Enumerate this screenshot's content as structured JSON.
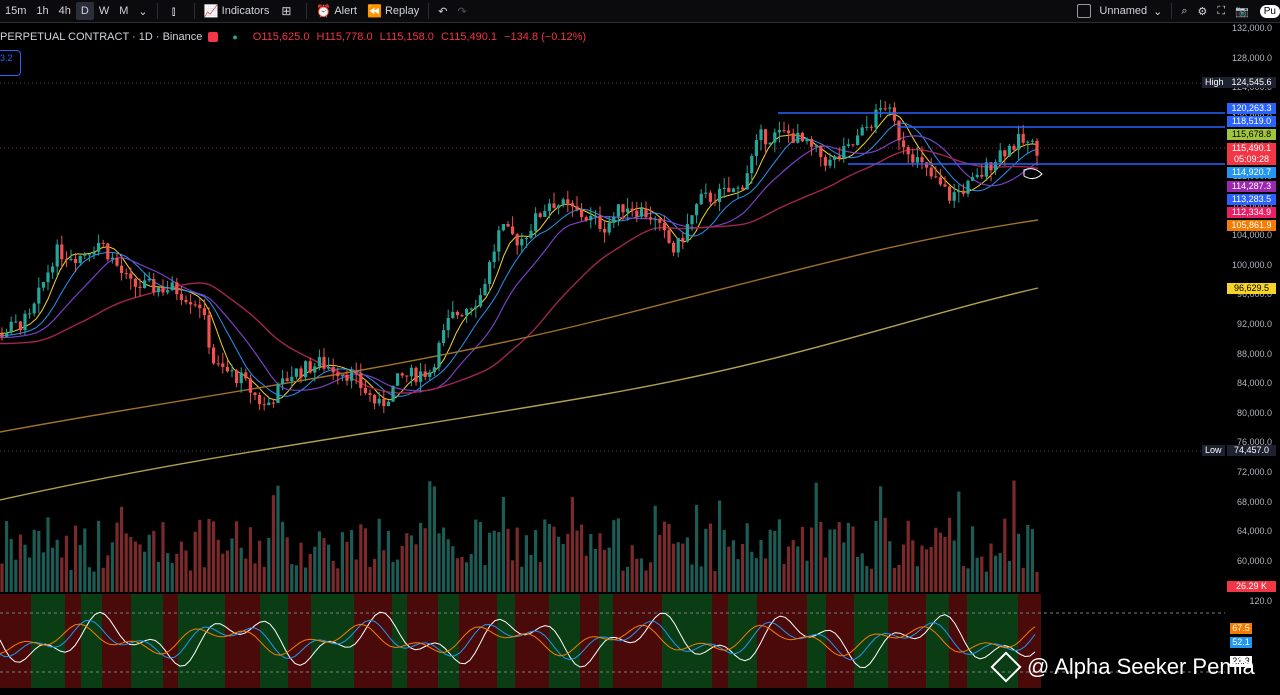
{
  "toolbar": {
    "timeframes": [
      "15m",
      "1h",
      "4h",
      "D",
      "W",
      "M"
    ],
    "active_timeframe": "D",
    "indicators_label": "Indicators",
    "alert_label": "Alert",
    "replay_label": "Replay",
    "layout_name": "Unnamed",
    "publish_label": "Pu"
  },
  "legend": {
    "symbol": "PERPETUAL CONTRACT · 1D · Binance",
    "open": "O115,625.0",
    "high": "H115,778.0",
    "low": "L115,158.0",
    "close": "C115,490.1",
    "change": "−134.8 (−0.12%)",
    "badge": "3.2"
  },
  "price_axis": [
    "132,000.0",
    "128,000.0",
    "124,000.0",
    "120,000.0",
    "116,000.0",
    "112,000.0",
    "108,000.0",
    "104,000.0",
    "100,000.0",
    "96,000.0",
    "92,000.0",
    "88,000.0",
    "84,000.0",
    "80,000.0",
    "76,000.0",
    "72,000.0",
    "68,000.0",
    "64,000.0",
    "60,000.0"
  ],
  "markers": {
    "high_label": "High",
    "high_value": "124,545.6",
    "low_label": "Low",
    "low_value": "74,457.0"
  },
  "price_tags": [
    {
      "value": "120,263.3",
      "color": "#2962ff"
    },
    {
      "value": "118,519.0",
      "color": "#2962ff"
    },
    {
      "value": "115,678.8",
      "color": "#9fc53a"
    },
    {
      "value": "115,490.1",
      "color": "#f23645"
    },
    {
      "value": "05:09:28",
      "color": "#f23645"
    },
    {
      "value": "114,920.7",
      "color": "#2196f3"
    },
    {
      "value": "114,287.3",
      "color": "#9c27b0"
    },
    {
      "value": "113,283.5",
      "color": "#2962ff"
    },
    {
      "value": "112,334.9",
      "color": "#e91e63"
    },
    {
      "value": "105,861.9",
      "color": "#f57c00"
    },
    {
      "value": "96,629.5",
      "color": "#f5d327"
    }
  ],
  "volume_tag": "26.29 K",
  "oscillator": {
    "level_top": "120.0",
    "tags": [
      {
        "value": "67.5",
        "color": "#f57c00"
      },
      {
        "value": "52.1",
        "color": "#2196f3"
      },
      {
        "value": "21.3",
        "color": "#ffffff"
      }
    ]
  },
  "watermark": "@ Alpha Seeker Pemia",
  "colors": {
    "up": "#26a69a",
    "down": "#ef5350",
    "bg": "#000000"
  }
}
